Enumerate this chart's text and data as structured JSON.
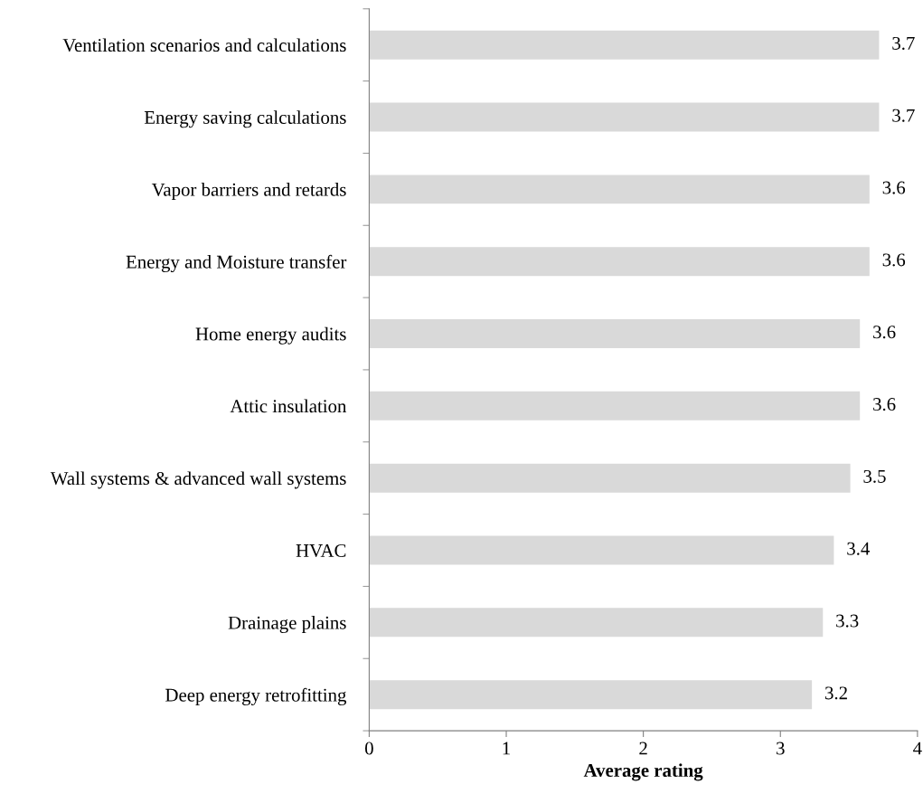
{
  "chart_data": {
    "type": "bar",
    "orientation": "horizontal",
    "xlabel": "Average rating",
    "categories": [
      "Ventilation scenarios and calculations",
      "Energy saving calculations",
      "Vapor barriers and retards",
      "Energy and Moisture transfer",
      "Home energy audits",
      "Attic insulation",
      "Wall systems & advanced wall systems",
      "HVAC",
      "Drainage plains",
      "Deep energy retrofitting"
    ],
    "values": [
      3.72,
      3.72,
      3.65,
      3.65,
      3.58,
      3.58,
      3.51,
      3.39,
      3.31,
      3.23
    ],
    "value_labels": [
      "3.7",
      "3.7",
      "3.6",
      "3.6",
      "3.6",
      "3.6",
      "3.5",
      "3.4",
      "3.3",
      "3.2"
    ],
    "color": "#d9d9d9",
    "xlim": [
      0,
      4
    ],
    "xticks": [
      0,
      1,
      2,
      3,
      4
    ],
    "grid": false,
    "legend": false
  }
}
